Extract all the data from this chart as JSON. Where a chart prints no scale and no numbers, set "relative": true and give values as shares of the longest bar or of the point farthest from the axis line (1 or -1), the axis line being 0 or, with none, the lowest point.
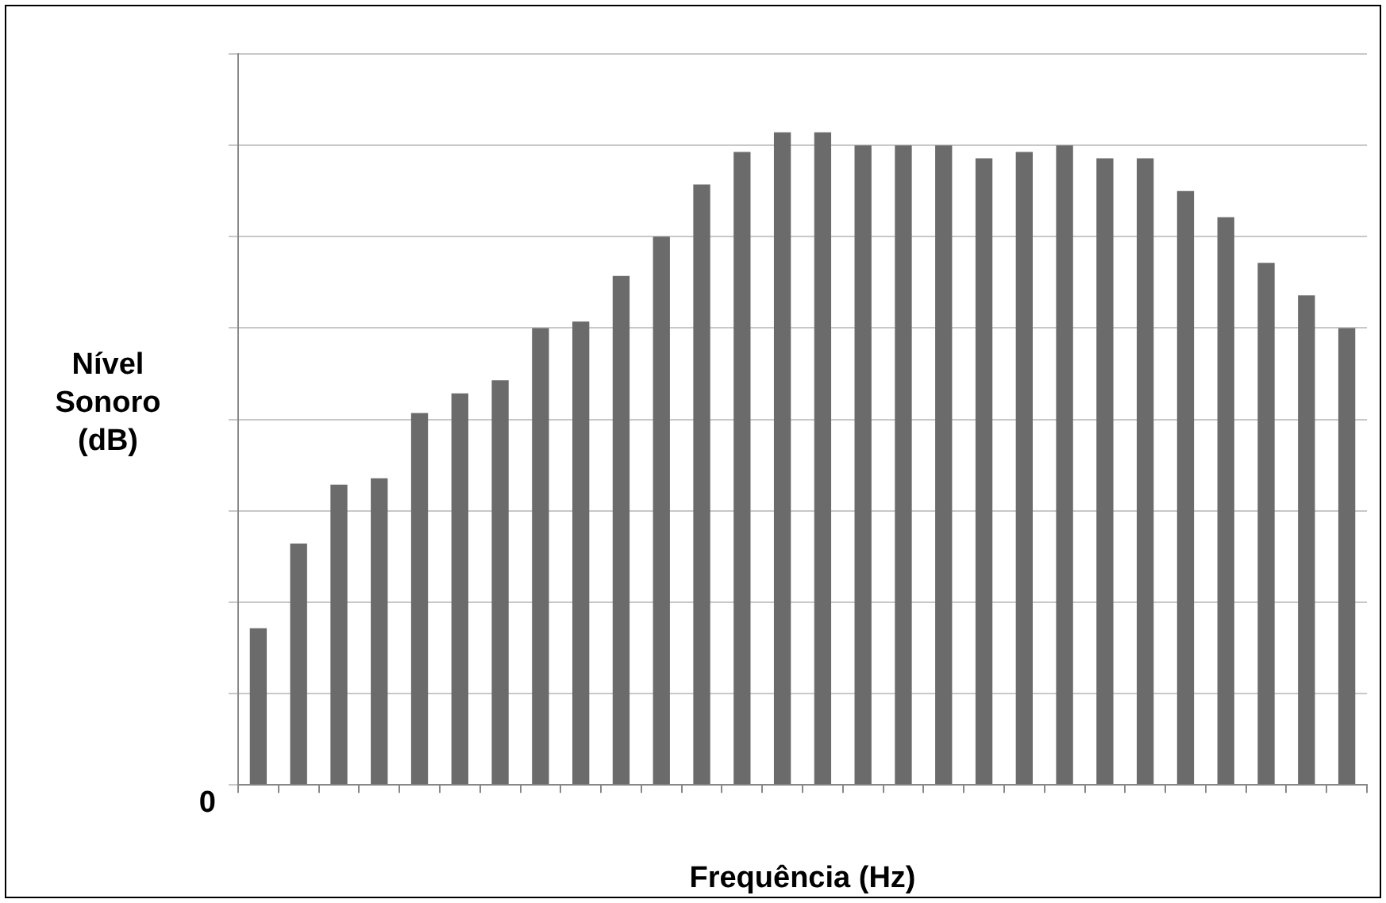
{
  "chart_data": {
    "type": "bar",
    "relative": true,
    "xlabel": "Frequência (Hz)",
    "ylabel": "Nível Sonoro (dB)",
    "annotations": [
      "0"
    ],
    "grid": "y",
    "legend": false,
    "color": "#6b6b6b",
    "categories": [
      null,
      null,
      null,
      null,
      null,
      null,
      null,
      null,
      null,
      null,
      null,
      null,
      null,
      null,
      null,
      null,
      null,
      null,
      null,
      null,
      null,
      null,
      null,
      null,
      null,
      null,
      null,
      null
    ],
    "values": [
      0.24,
      0.37,
      0.46,
      0.47,
      0.57,
      0.6,
      0.62,
      0.7,
      0.71,
      0.78,
      0.84,
      0.92,
      0.97,
      1,
      1,
      0.98,
      0.98,
      0.98,
      0.96,
      0.97,
      0.98,
      0.96,
      0.96,
      0.91,
      0.87,
      0.8,
      0.75,
      0.7
    ]
  }
}
